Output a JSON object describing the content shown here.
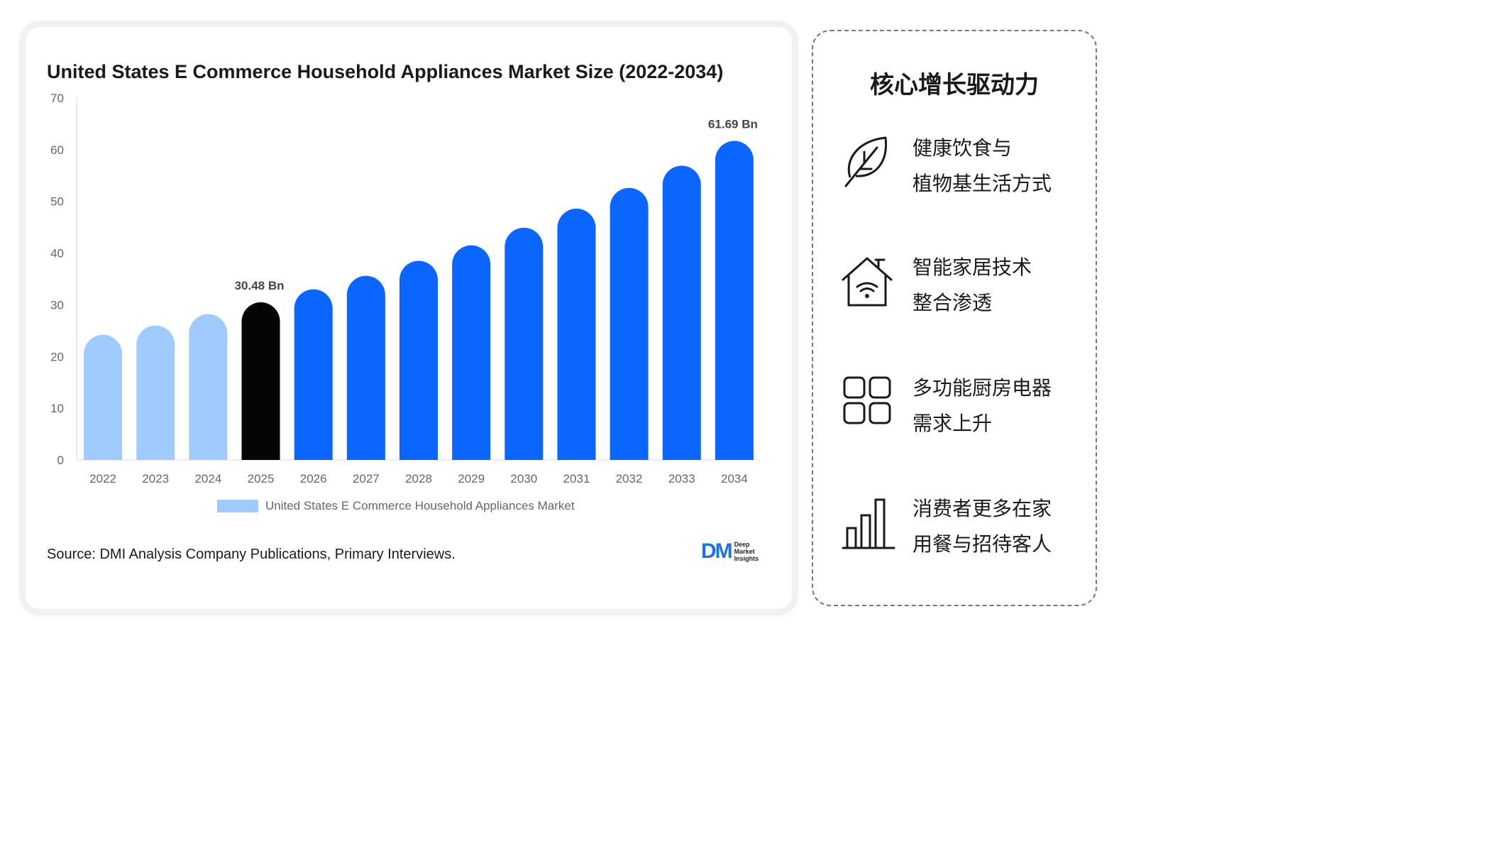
{
  "chart_data": {
    "type": "bar",
    "title": "United States E Commerce Household Appliances Market Size (2022-2034)",
    "categories": [
      "2022",
      "2023",
      "2024",
      "2025",
      "2026",
      "2027",
      "2028",
      "2029",
      "2030",
      "2031",
      "2032",
      "2033",
      "2034"
    ],
    "series": [
      {
        "name": "United States E Commerce Household Appliances Market",
        "values": [
          24.2,
          26.0,
          28.2,
          30.48,
          33.0,
          35.6,
          38.5,
          41.5,
          44.9,
          48.6,
          52.6,
          56.9,
          61.69
        ]
      }
    ],
    "bar_colors": [
      "#a0cbff",
      "#a0cbff",
      "#a0cbff",
      "#050505",
      "#0a66ff",
      "#0a66ff",
      "#0a66ff",
      "#0a66ff",
      "#0a66ff",
      "#0a66ff",
      "#0a66ff",
      "#0a66ff",
      "#0a66ff"
    ],
    "data_labels": [
      {
        "category": "2025",
        "text": "30.48 Bn"
      },
      {
        "category": "2034",
        "text": "61.69 Bn"
      }
    ],
    "yticks": [
      0,
      10,
      20,
      30,
      40,
      50,
      60,
      70
    ],
    "ylim": [
      0,
      70
    ],
    "xlabel": "",
    "ylabel": "",
    "grid": false,
    "legend": "bottom"
  },
  "source": "Source: DMI Analysis Company Publications, Primary Interviews.",
  "logo": {
    "mark": "DM",
    "line1": "Deep",
    "line2": "Market",
    "line3": "Insights"
  },
  "drivers": {
    "title": "核心增长驱动力",
    "items": [
      {
        "icon": "leaf-icon",
        "line1": "健康饮食与",
        "line2": "植物基生活方式"
      },
      {
        "icon": "smart-home-icon",
        "line1": "智能家居技术",
        "line2": "整合渗透"
      },
      {
        "icon": "grid-apps-icon",
        "line1": "多功能厨房电器",
        "line2": "需求上升"
      },
      {
        "icon": "bar-chart-icon",
        "line1": "消费者更多在家",
        "line2": "用餐与招待客人"
      }
    ]
  }
}
